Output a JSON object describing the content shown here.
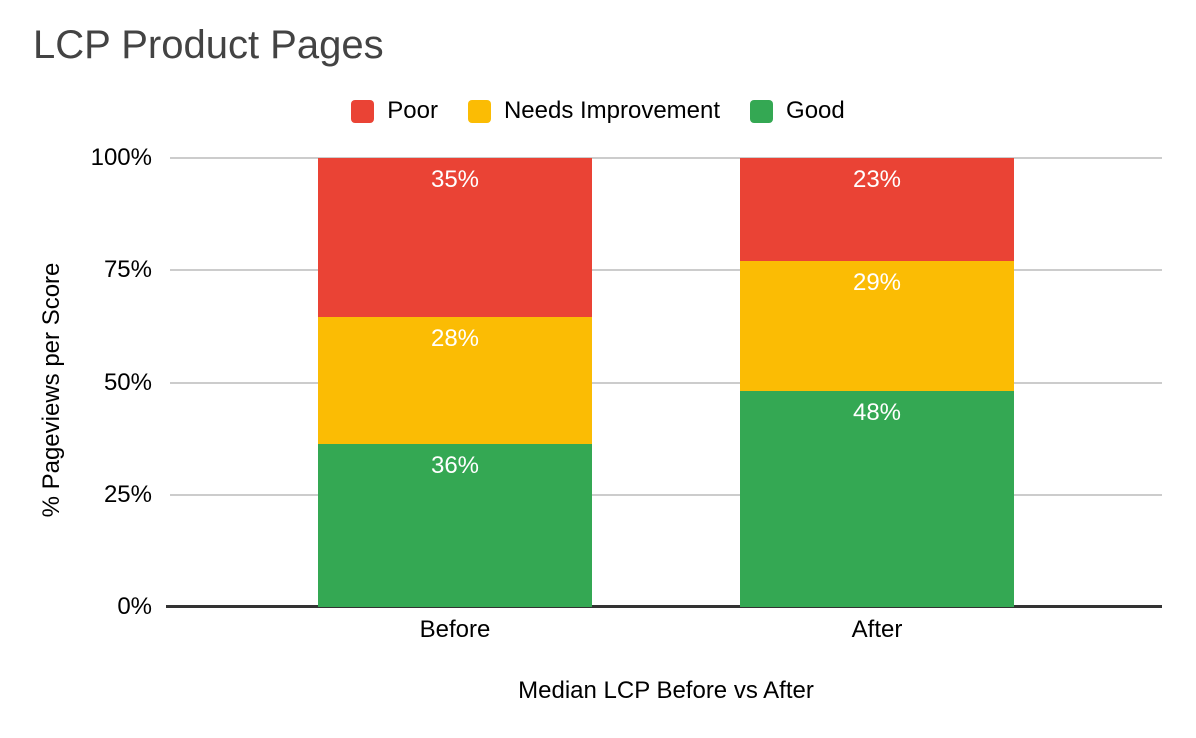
{
  "chart_data": {
    "type": "bar",
    "subtype": "stacked-100-percent",
    "title": "LCP Product Pages",
    "categories": [
      "Before",
      "After"
    ],
    "series": [
      {
        "name": "Poor",
        "color": "#EA4335",
        "values": [
          35,
          23
        ]
      },
      {
        "name": "Needs Improvement",
        "color": "#FBBC04",
        "values": [
          28,
          29
        ]
      },
      {
        "name": "Good",
        "color": "#34A853",
        "values": [
          36,
          48
        ]
      }
    ],
    "stack_order_bottom_to_top": [
      "Good",
      "Needs Improvement",
      "Poor"
    ],
    "value_suffix": "%",
    "ylabel": "% Pageviews per Score",
    "xlabel": "Median LCP Before vs After",
    "yticks": [
      "0%",
      "25%",
      "50%",
      "75%",
      "100%"
    ],
    "ytick_values": [
      0,
      25,
      50,
      75,
      100
    ],
    "ylim": [
      0,
      100
    ],
    "legend_position": "top",
    "grid": true,
    "colors": {
      "background": "#ffffff",
      "title_text": "#434343",
      "axis_text": "#000000",
      "bar_label_text": "#ffffff",
      "gridline": "#cccccc",
      "axis_line": "#333333"
    }
  }
}
